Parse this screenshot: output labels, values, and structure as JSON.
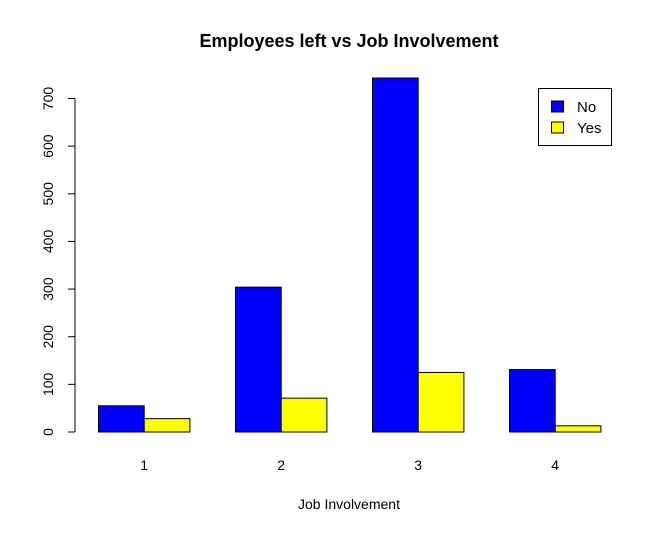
{
  "chart_data": {
    "type": "bar",
    "title": "Employees left vs Job Involvement",
    "xlabel": "Job Involvement",
    "ylabel": "",
    "categories": [
      "1",
      "2",
      "3",
      "4"
    ],
    "series": [
      {
        "name": "No",
        "values": [
          55,
          304,
          743,
          131
        ],
        "color": "#0000FF"
      },
      {
        "name": "Yes",
        "values": [
          28,
          71,
          125,
          13
        ],
        "color": "#FFFF00"
      }
    ],
    "ylim": [
      0,
      743
    ],
    "yticks": [
      0,
      100,
      200,
      300,
      400,
      500,
      600,
      700
    ],
    "legend_position": "top-right",
    "grid": false
  }
}
